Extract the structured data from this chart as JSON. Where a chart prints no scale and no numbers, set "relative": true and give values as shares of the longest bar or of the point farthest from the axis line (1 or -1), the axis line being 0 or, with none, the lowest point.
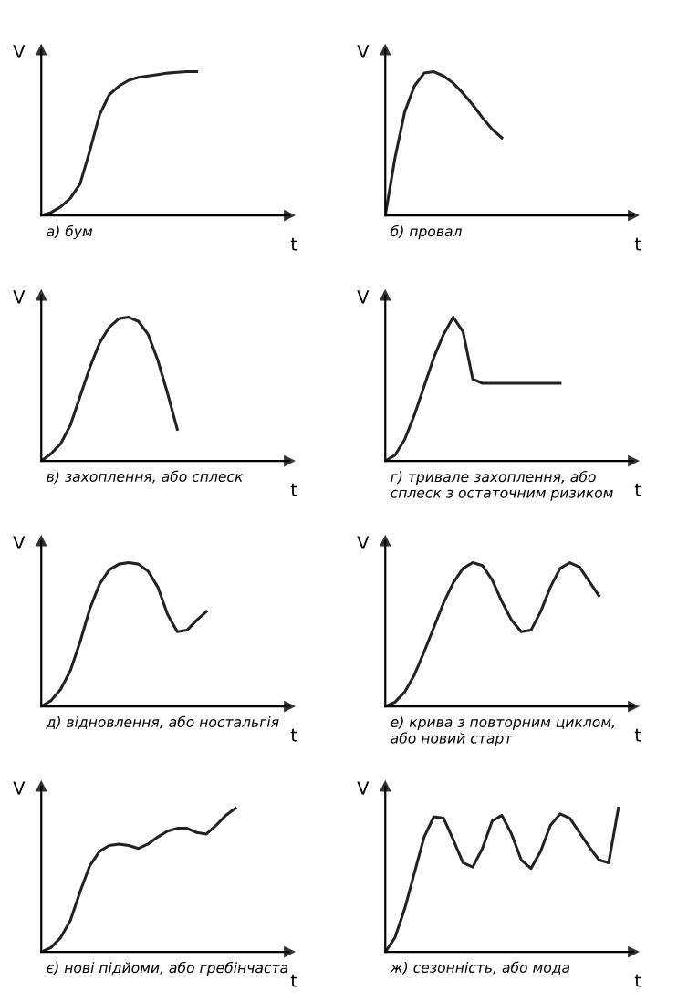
{
  "chart_data": [
    {
      "type": "line",
      "relative": true,
      "xlabel": "t",
      "ylabel": "V",
      "tick_labels": false,
      "color": "#222222",
      "annotations": [
        "а) бум"
      ],
      "categories": [
        null,
        null,
        null,
        null,
        null,
        null,
        null,
        null,
        null,
        null,
        null,
        null,
        null,
        null,
        null,
        null,
        null,
        null,
        null,
        null,
        null,
        null,
        null,
        null,
        null
      ],
      "values": [
        0,
        0.02,
        0.06,
        0.12,
        0.22,
        0.45,
        0.7,
        0.84,
        0.9,
        0.94,
        0.96,
        0.97,
        0.98,
        0.99,
        0.995,
        1.0,
        1.0,
        null,
        null,
        null,
        null,
        null,
        null,
        null,
        null
      ]
    },
    {
      "type": "line",
      "relative": true,
      "xlabel": "t",
      "ylabel": "V",
      "tick_labels": false,
      "color": "#222222",
      "annotations": [
        "б) провал"
      ],
      "categories": [
        null,
        null,
        null,
        null,
        null,
        null,
        null,
        null,
        null,
        null,
        null,
        null,
        null,
        null,
        null,
        null,
        null,
        null,
        null,
        null,
        null,
        null,
        null,
        null,
        null
      ],
      "values": [
        0,
        0.4,
        0.72,
        0.9,
        0.99,
        1.0,
        0.97,
        0.92,
        0.85,
        0.77,
        0.68,
        0.6,
        0.54,
        null,
        null,
        null,
        null,
        null,
        null,
        null,
        null,
        null,
        null,
        null,
        null
      ]
    },
    {
      "type": "line",
      "relative": true,
      "xlabel": "t",
      "ylabel": "V",
      "tick_labels": false,
      "color": "#222222",
      "annotations": [
        "в) захоплення, або сплеск"
      ],
      "categories": [
        null,
        null,
        null,
        null,
        null,
        null,
        null,
        null,
        null,
        null,
        null,
        null,
        null,
        null,
        null,
        null,
        null,
        null,
        null,
        null,
        null,
        null,
        null,
        null,
        null
      ],
      "values": [
        0,
        0.05,
        0.12,
        0.25,
        0.45,
        0.65,
        0.82,
        0.93,
        0.99,
        1.0,
        0.97,
        0.88,
        0.7,
        0.47,
        0.22,
        null,
        null,
        null,
        null,
        null,
        null,
        null,
        null,
        null,
        null
      ]
    },
    {
      "type": "line",
      "relative": true,
      "xlabel": "t",
      "ylabel": "V",
      "tick_labels": false,
      "color": "#222222",
      "annotations": [
        "г) тривале захоплення, або\nсплеск з остаточним ризиком"
      ],
      "categories": [
        null,
        null,
        null,
        null,
        null,
        null,
        null,
        null,
        null,
        null,
        null,
        null,
        null,
        null,
        null,
        null,
        null,
        null,
        null,
        null,
        null,
        null,
        null,
        null,
        null
      ],
      "values": [
        0,
        0.04,
        0.15,
        0.32,
        0.52,
        0.72,
        0.88,
        1.0,
        0.9,
        0.57,
        0.54,
        0.54,
        0.54,
        0.54,
        0.54,
        0.54,
        0.54,
        0.54,
        0.54,
        null,
        null,
        null,
        null,
        null,
        null
      ]
    },
    {
      "type": "line",
      "relative": true,
      "xlabel": "t",
      "ylabel": "V",
      "tick_labels": false,
      "color": "#222222",
      "annotations": [
        "д) відновлення, або ностальгія"
      ],
      "categories": [
        null,
        null,
        null,
        null,
        null,
        null,
        null,
        null,
        null,
        null,
        null,
        null,
        null,
        null,
        null,
        null,
        null,
        null,
        null,
        null,
        null,
        null,
        null,
        null,
        null
      ],
      "values": [
        0,
        0.04,
        0.12,
        0.25,
        0.45,
        0.68,
        0.85,
        0.95,
        0.99,
        1.0,
        0.99,
        0.94,
        0.83,
        0.64,
        0.52,
        0.53,
        0.6,
        0.66,
        null,
        null,
        null,
        null,
        null,
        null,
        null
      ]
    },
    {
      "type": "line",
      "relative": true,
      "xlabel": "t",
      "ylabel": "V",
      "tick_labels": false,
      "color": "#222222",
      "annotations": [
        "е) крива з повторним циклом,\nабо новий старт"
      ],
      "categories": [
        null,
        null,
        null,
        null,
        null,
        null,
        null,
        null,
        null,
        null,
        null,
        null,
        null,
        null,
        null,
        null,
        null,
        null,
        null,
        null,
        null,
        null,
        null,
        null,
        null
      ],
      "values": [
        0,
        0.03,
        0.1,
        0.22,
        0.38,
        0.55,
        0.72,
        0.86,
        0.96,
        1.0,
        0.98,
        0.88,
        0.73,
        0.6,
        0.52,
        0.53,
        0.66,
        0.83,
        0.96,
        1.0,
        0.97,
        0.87,
        0.77,
        null,
        null
      ]
    },
    {
      "type": "line",
      "relative": true,
      "xlabel": "t",
      "ylabel": "V",
      "tick_labels": false,
      "color": "#222222",
      "annotations": [
        "є) нові підйоми, або гребінчаста"
      ],
      "categories": [
        null,
        null,
        null,
        null,
        null,
        null,
        null,
        null,
        null,
        null,
        null,
        null,
        null,
        null,
        null,
        null,
        null,
        null,
        null,
        null,
        null,
        null,
        null,
        null,
        null
      ],
      "values": [
        0,
        0.03,
        0.1,
        0.22,
        0.42,
        0.6,
        0.7,
        0.74,
        0.75,
        0.74,
        0.72,
        0.75,
        0.8,
        0.84,
        0.86,
        0.86,
        0.83,
        0.82,
        0.88,
        0.95,
        1.0,
        null,
        null,
        null,
        null
      ]
    },
    {
      "type": "line",
      "relative": true,
      "xlabel": "t",
      "ylabel": "V",
      "tick_labels": false,
      "color": "#222222",
      "annotations": [
        "ж) сезонність, або мода"
      ],
      "categories": [
        null,
        null,
        null,
        null,
        null,
        null,
        null,
        null,
        null,
        null,
        null,
        null,
        null,
        null,
        null,
        null,
        null,
        null,
        null,
        null,
        null,
        null,
        null,
        null,
        null
      ],
      "values": [
        0,
        0.1,
        0.3,
        0.55,
        0.8,
        0.94,
        0.93,
        0.78,
        0.62,
        0.59,
        0.72,
        0.91,
        0.95,
        0.82,
        0.64,
        0.58,
        0.7,
        0.88,
        0.96,
        0.93,
        0.83,
        0.73,
        0.64,
        0.62,
        1.0
      ]
    }
  ]
}
